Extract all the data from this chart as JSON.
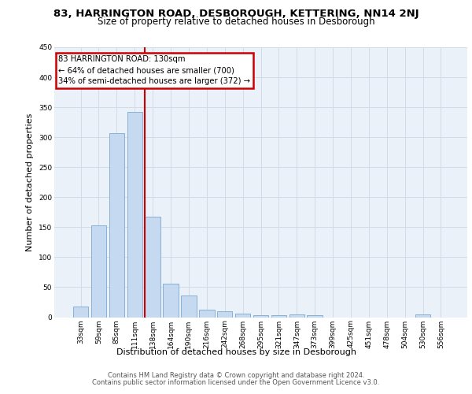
{
  "title_line1": "83, HARRINGTON ROAD, DESBOROUGH, KETTERING, NN14 2NJ",
  "title_line2": "Size of property relative to detached houses in Desborough",
  "xlabel": "Distribution of detached houses by size in Desborough",
  "ylabel": "Number of detached properties",
  "footer_line1": "Contains HM Land Registry data © Crown copyright and database right 2024.",
  "footer_line2": "Contains public sector information licensed under the Open Government Licence v3.0.",
  "bar_labels": [
    "33sqm",
    "59sqm",
    "85sqm",
    "111sqm",
    "138sqm",
    "164sqm",
    "190sqm",
    "216sqm",
    "242sqm",
    "268sqm",
    "295sqm",
    "321sqm",
    "347sqm",
    "373sqm",
    "399sqm",
    "425sqm",
    "451sqm",
    "478sqm",
    "504sqm",
    "530sqm",
    "556sqm"
  ],
  "bar_values": [
    18,
    153,
    307,
    342,
    167,
    56,
    36,
    12,
    10,
    6,
    3,
    3,
    5,
    3,
    0,
    0,
    0,
    0,
    0,
    4,
    0
  ],
  "bar_color": "#c5d9f0",
  "bar_edgecolor": "#7da9d0",
  "annotation_line1": "83 HARRINGTON ROAD: 130sqm",
  "annotation_line2": "← 64% of detached houses are smaller (700)",
  "annotation_line3": "34% of semi-detached houses are larger (372) →",
  "vline_color": "#cc0000",
  "annotation_box_edgecolor": "#cc0000",
  "ylim": [
    0,
    450
  ],
  "yticks": [
    0,
    50,
    100,
    150,
    200,
    250,
    300,
    350,
    400,
    450
  ],
  "grid_color": "#d0dce8",
  "bg_color": "#eaf1f8",
  "title1_fontsize": 9.5,
  "title2_fontsize": 8.5,
  "ylabel_fontsize": 8,
  "xlabel_fontsize": 8,
  "tick_fontsize": 6.5,
  "ann_fontsize": 7.2,
  "footer_fontsize": 6.0
}
